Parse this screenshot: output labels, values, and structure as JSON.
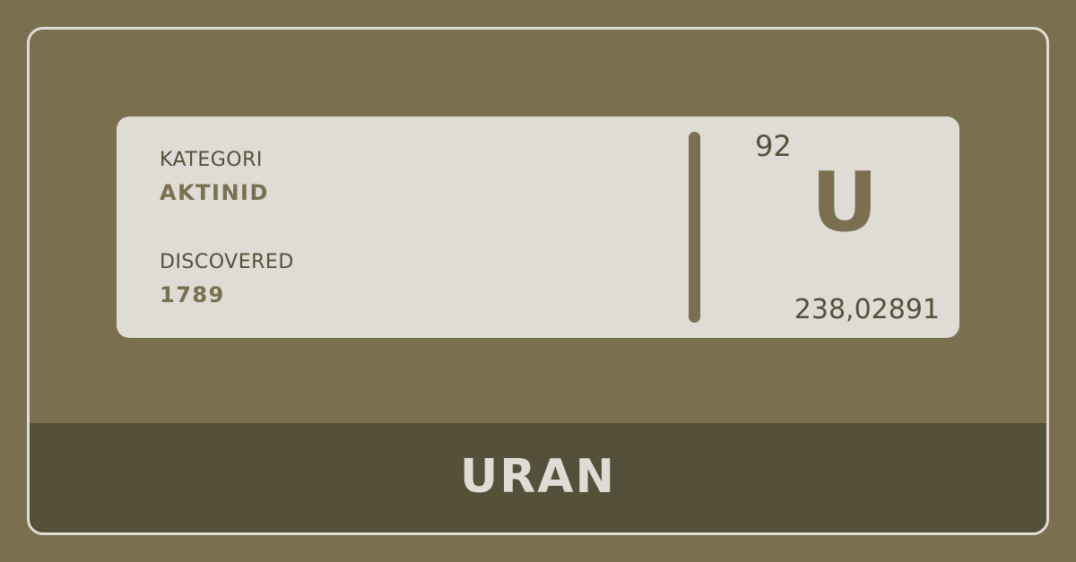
{
  "card": {
    "category_label": "KATEGORI",
    "category_value": "AKTINID",
    "discovered_label": "DISCOVERED",
    "discovered_value": "1789",
    "atomic_number": "92",
    "symbol": "U",
    "atomic_mass": "238,02891"
  },
  "footer": {
    "name": "URAN"
  },
  "colors": {
    "background": "#7a7050",
    "card": "#dedcd5",
    "footer": "#555039",
    "accent_text": "#7a7050",
    "dark_text": "#55503a"
  }
}
